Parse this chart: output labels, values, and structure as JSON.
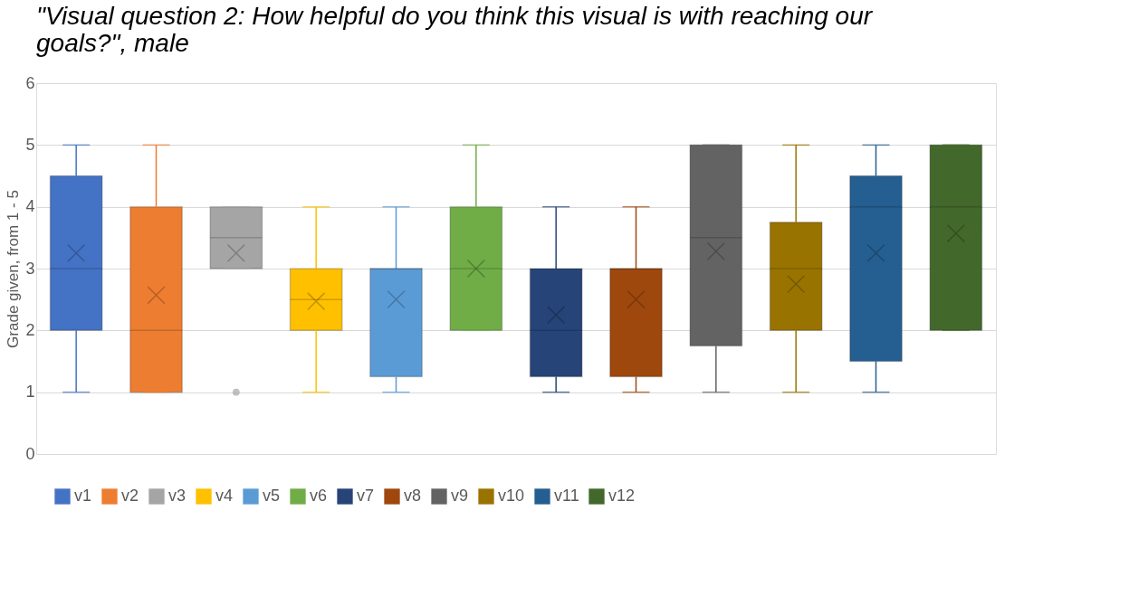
{
  "chart_data": {
    "type": "box",
    "title": "\"Visual question 2: How helpful do you think this visual is with reaching our goals?\", male",
    "ylabel": "Grade given, from 1 - 5",
    "categories": [
      null
    ],
    "ylim": [
      0,
      6
    ],
    "yticks": [
      0,
      1,
      2,
      3,
      4,
      5,
      6
    ],
    "grid": "y",
    "legend": "bottom",
    "marker": "cross",
    "tick_labels": "y",
    "series": [
      {
        "name": "v1",
        "color": "#4472c4",
        "boxes": [
          {
            "low": 1,
            "q1": 2,
            "median": 3,
            "q3": 4.5,
            "high": 5,
            "mean": 3.25
          }
        ]
      },
      {
        "name": "v2",
        "color": "#ed7d31",
        "boxes": [
          {
            "low": 1,
            "q1": 1,
            "median": 2,
            "q3": 4,
            "high": 5,
            "mean": 2.57
          }
        ]
      },
      {
        "name": "v3",
        "color": "#a5a5a5",
        "boxes": [
          {
            "low": 3,
            "q1": 3,
            "median": 3.5,
            "q3": 4,
            "high": 4,
            "mean": 3.25,
            "outliers": [
              1
            ]
          }
        ]
      },
      {
        "name": "v4",
        "color": "#ffc000",
        "boxes": [
          {
            "low": 1,
            "q1": 2,
            "median": 2.5,
            "q3": 3,
            "high": 4,
            "mean": 2.47
          }
        ]
      },
      {
        "name": "v5",
        "color": "#5b9bd5",
        "boxes": [
          {
            "low": 1,
            "q1": 1.25,
            "median": 3,
            "q3": 3,
            "high": 4,
            "mean": 2.5
          }
        ]
      },
      {
        "name": "v6",
        "color": "#70ad47",
        "boxes": [
          {
            "low": 2,
            "q1": 2,
            "median": 3,
            "q3": 4,
            "high": 5,
            "mean": 3
          }
        ]
      },
      {
        "name": "v7",
        "color": "#264478",
        "boxes": [
          {
            "low": 1,
            "q1": 1.25,
            "median": 2,
            "q3": 3,
            "high": 4,
            "mean": 2.25
          }
        ]
      },
      {
        "name": "v8",
        "color": "#9e480e",
        "boxes": [
          {
            "low": 1,
            "q1": 1.25,
            "median": 3,
            "q3": 3,
            "high": 4,
            "mean": 2.5
          }
        ]
      },
      {
        "name": "v9",
        "color": "#636363",
        "boxes": [
          {
            "low": 1,
            "q1": 1.75,
            "median": 3.5,
            "q3": 5,
            "high": 5,
            "mean": 3.28
          }
        ]
      },
      {
        "name": "v10",
        "color": "#997300",
        "boxes": [
          {
            "low": 1,
            "q1": 2,
            "median": 3,
            "q3": 3.75,
            "high": 5,
            "mean": 2.75
          }
        ]
      },
      {
        "name": "v11",
        "color": "#255e91",
        "boxes": [
          {
            "low": 1,
            "q1": 1.5,
            "median": 4,
            "q3": 4.5,
            "high": 5,
            "mean": 3.25
          }
        ]
      },
      {
        "name": "v12",
        "color": "#43682b",
        "boxes": [
          {
            "low": 2,
            "q1": 2,
            "median": 4,
            "q3": 5,
            "high": 5,
            "mean": 3.57
          }
        ]
      }
    ]
  }
}
